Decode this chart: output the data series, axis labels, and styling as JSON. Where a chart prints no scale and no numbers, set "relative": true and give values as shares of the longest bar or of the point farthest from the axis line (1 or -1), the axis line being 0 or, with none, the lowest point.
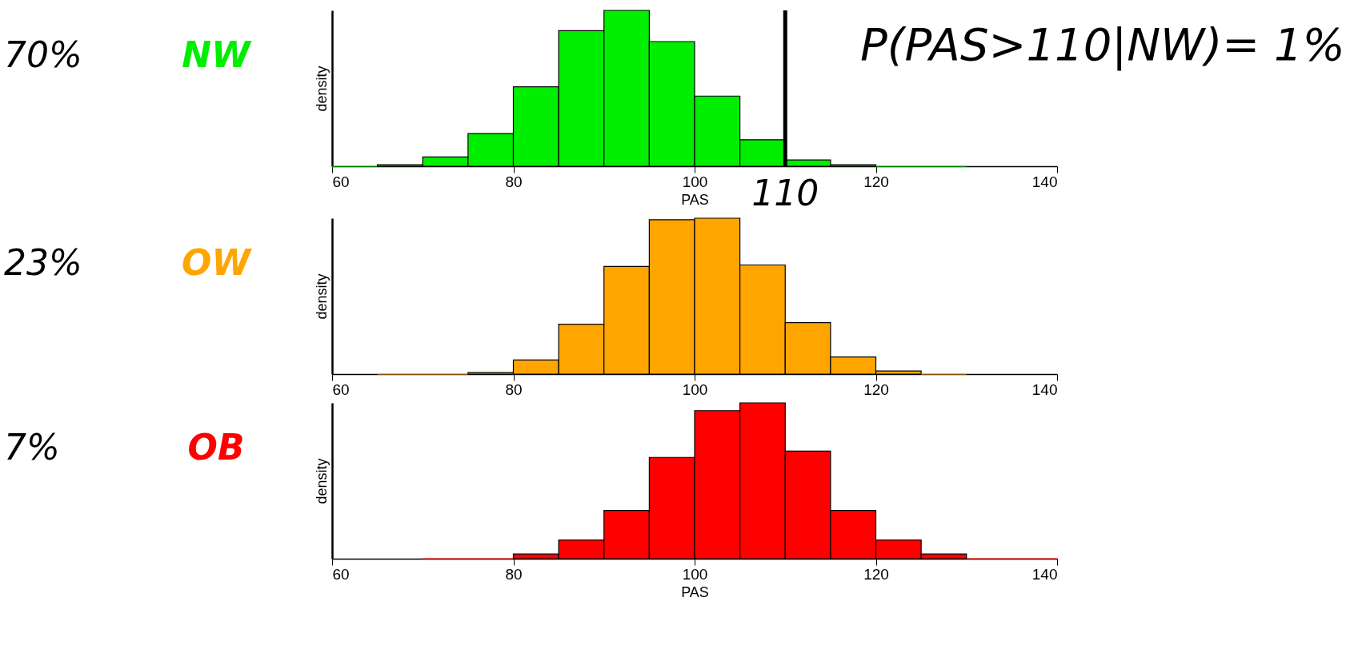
{
  "chart_data": [
    {
      "type": "bar",
      "relative": true,
      "title": "NW",
      "xlabel": "PAS",
      "ylabel": "density",
      "xlim": [
        60,
        140
      ],
      "xticks": [
        60,
        80,
        100,
        120,
        140
      ],
      "x": [
        62.5,
        67.5,
        72.5,
        77.5,
        82.5,
        87.5,
        92.5,
        97.5,
        102.5,
        107.5,
        112.5,
        117.5,
        122.5,
        127.5
      ],
      "values": [
        0,
        0.01,
        0.06,
        0.21,
        0.51,
        0.87,
        1,
        0.8,
        0.45,
        0.17,
        0.04,
        0.01,
        0,
        0
      ],
      "color": "#00ee00",
      "ref_lines": [
        {
          "axis": "x",
          "value": 110,
          "label": "110"
        }
      ],
      "annotations": [
        "70%",
        "P(PAS>110|NW)= 1%"
      ]
    },
    {
      "type": "bar",
      "relative": true,
      "title": "OW",
      "ylabel": "density",
      "xlim": [
        60,
        140
      ],
      "xticks": [
        60,
        80,
        100,
        120,
        140
      ],
      "x": [
        67.5,
        72.5,
        77.5,
        82.5,
        87.5,
        92.5,
        97.5,
        102.5,
        107.5,
        112.5,
        117.5,
        122.5,
        127.5
      ],
      "values": [
        0,
        0,
        0.01,
        0.09,
        0.32,
        0.69,
        0.99,
        1,
        0.7,
        0.33,
        0.11,
        0.02,
        0
      ],
      "color": "#ffa500",
      "annotations": [
        "23%"
      ]
    },
    {
      "type": "bar",
      "relative": true,
      "title": "OB",
      "xlabel": "PAS",
      "ylabel": "density",
      "xlim": [
        60,
        140
      ],
      "xticks": [
        60,
        80,
        100,
        120,
        140
      ],
      "x": [
        72.5,
        77.5,
        82.5,
        87.5,
        92.5,
        97.5,
        102.5,
        107.5,
        112.5,
        117.5,
        122.5,
        127.5,
        132.5,
        137.5
      ],
      "values": [
        0,
        0,
        0.03,
        0.12,
        0.31,
        0.65,
        0.95,
        1,
        0.69,
        0.31,
        0.12,
        0.03,
        0,
        0
      ],
      "color": "#ff0000",
      "annotations": [
        "7%"
      ]
    }
  ]
}
